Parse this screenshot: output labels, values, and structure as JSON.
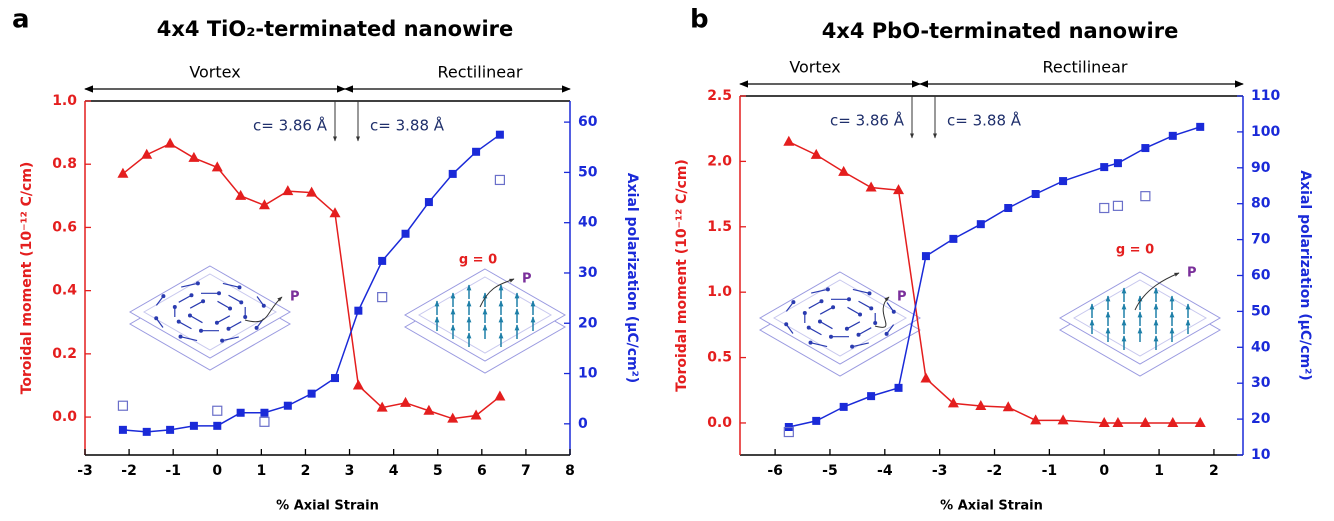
{
  "chart_data": [
    {
      "type": "line",
      "panel_label": "a",
      "title": "4x4 TiO₂-terminated nanowire",
      "xlabel": "% Axial Strain",
      "ylabel": "Toroidal moment (10⁻¹² C/cm)",
      "y2label": "Axial polarization (μC/cm²)",
      "x": [
        -2.14,
        -1.6,
        -1.07,
        -0.53,
        0,
        0.53,
        1.07,
        1.6,
        2.14,
        2.67,
        3.2,
        3.74,
        4.27,
        4.8,
        5.34,
        5.87,
        6.41
      ],
      "series": [
        {
          "color": "#e41e1e",
          "axis": "y",
          "marker": "triangle",
          "values": [
            0.77,
            0.83,
            0.865,
            0.82,
            0.79,
            0.7,
            0.67,
            0.715,
            0.71,
            0.645,
            0.1,
            0.03,
            0.045,
            0.02,
            -0.005,
            0.005,
            0.065
          ]
        },
        {
          "color": "#1a2ad8",
          "axis": "y2",
          "marker": "square",
          "values": [
            -1.2,
            -1.6,
            -1.2,
            -0.4,
            -0.4,
            2.2,
            2.2,
            3.6,
            6.0,
            9.1,
            22.5,
            32.4,
            37.8,
            44.1,
            49.7,
            54.1,
            57.5
          ]
        },
        {
          "color": "#6a6fc9",
          "axis": "y2",
          "marker": "open-square",
          "x": [
            -2.14,
            0,
            1.07,
            3.74,
            6.41
          ],
          "values": [
            3.6,
            2.6,
            0.4,
            25.2,
            48.5
          ]
        }
      ],
      "xlim": [
        -3,
        8
      ],
      "xticks": [
        -3,
        -2,
        -1,
        0,
        1,
        2,
        3,
        4,
        5,
        6,
        7,
        8
      ],
      "ylim": [
        -0.12,
        1.0
      ],
      "yticks": [
        {
          "value": 0,
          "label": "0.0"
        },
        0.2,
        0.4,
        0.6,
        0.8,
        {
          "value": 1,
          "label": "1.0"
        }
      ],
      "y2lim": [
        -6.2,
        64.2
      ],
      "y2ticks": [
        0,
        10,
        20,
        30,
        40,
        50,
        60
      ],
      "annotations": {
        "regions": [
          "Vortex",
          "Rectilinear"
        ],
        "lattice": [
          "c= 3.86 Å",
          "c= 3.88 Å"
        ],
        "inset_polarization": "P",
        "inset_g": "g = 0"
      }
    },
    {
      "type": "line",
      "panel_label": "b",
      "title": "4x4 PbO-terminated nanowire",
      "xlabel": "% Axial Strain",
      "ylabel": "Toroidal moment (10⁻¹² C/cm)",
      "y2label": "Axial polarization (μC/cm²)",
      "x": [
        -5.75,
        -5.25,
        -4.75,
        -4.25,
        -3.75,
        -3.25,
        -2.75,
        -2.25,
        -1.75,
        -1.25,
        -0.75,
        0,
        0.25,
        0.75,
        1.25,
        1.75
      ],
      "series": [
        {
          "color": "#e41e1e",
          "axis": "y",
          "marker": "triangle",
          "values": [
            2.15,
            2.05,
            1.92,
            1.8,
            1.78,
            0.34,
            0.15,
            0.13,
            0.12,
            0.02,
            0.02,
            0.0,
            0.0,
            0.0,
            0.0,
            0.0
          ]
        },
        {
          "color": "#1a2ad8",
          "axis": "y2",
          "marker": "square",
          "values": [
            17.8,
            19.5,
            23.4,
            26.4,
            28.7,
            65.4,
            70.2,
            74.3,
            78.8,
            82.7,
            86.3,
            90.2,
            91.3,
            95.5,
            98.9,
            101.4
          ]
        },
        {
          "color": "#6a6fc9",
          "axis": "y2",
          "marker": "open-square",
          "x": [
            -5.75,
            0,
            0.25,
            0.75
          ],
          "values": [
            16.4,
            78.8,
            79.4,
            82.1
          ]
        }
      ],
      "xlim": [
        -6.64,
        2.53
      ],
      "xticks": [
        -6,
        -5,
        -4,
        -3,
        -2,
        -1,
        0,
        1,
        2
      ],
      "ylim": [
        -0.245,
        2.5
      ],
      "yticks": [
        {
          "value": 0,
          "label": "0.0"
        },
        0.5,
        {
          "value": 1,
          "label": "1.0"
        },
        1.5,
        {
          "value": 2,
          "label": "2.0"
        },
        2.5
      ],
      "y2lim": [
        10,
        110
      ],
      "y2ticks": [
        10,
        20,
        30,
        40,
        50,
        60,
        70,
        80,
        90,
        100,
        110
      ],
      "annotations": {
        "regions": [
          "Vortex",
          "Rectilinear"
        ],
        "lattice": [
          "c= 3.86 Å",
          "c= 3.88 Å"
        ],
        "inset_polarization": "P",
        "inset_g": "g = 0"
      }
    }
  ]
}
